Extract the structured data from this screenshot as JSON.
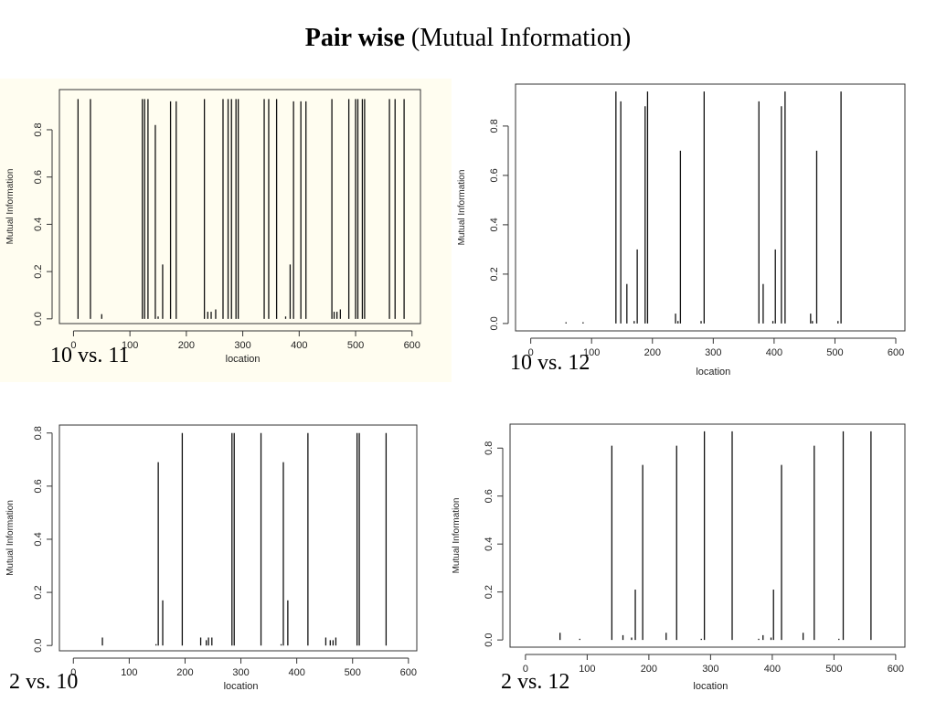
{
  "page": {
    "title_bold": "Pair wise",
    "title_rest": " (Mutual Information)"
  },
  "chart_data": [
    {
      "type": "bar",
      "label": "10 vs. 11",
      "xlabel": "location",
      "ylabel": "Mutual Information",
      "xlim": [
        -25,
        615
      ],
      "ylim": [
        -0.02,
        0.97
      ],
      "xticks": [
        0,
        100,
        200,
        300,
        400,
        500,
        600
      ],
      "yticks": [
        0.0,
        0.2,
        0.4,
        0.6,
        0.8
      ],
      "grid": false,
      "x": [
        8,
        30,
        50,
        122,
        126,
        132,
        145,
        150,
        158,
        172,
        182,
        232,
        238,
        244,
        252,
        265,
        274,
        280,
        288,
        292,
        338,
        346,
        360,
        376,
        384,
        390,
        403,
        412,
        458,
        462,
        467,
        473,
        488,
        500,
        504,
        512,
        516,
        560,
        570,
        586
      ],
      "values": [
        0.93,
        0.93,
        0.02,
        0.93,
        0.93,
        0.93,
        0.82,
        0.01,
        0.23,
        0.92,
        0.92,
        0.93,
        0.03,
        0.03,
        0.04,
        0.93,
        0.93,
        0.93,
        0.93,
        0.93,
        0.93,
        0.93,
        0.93,
        0.01,
        0.23,
        0.92,
        0.92,
        0.92,
        0.93,
        0.03,
        0.03,
        0.04,
        0.93,
        0.93,
        0.93,
        0.93,
        0.93,
        0.93,
        0.93,
        0.93
      ]
    },
    {
      "type": "bar",
      "label": "10 vs. 12",
      "xlabel": "location",
      "ylabel": "Mutual Information",
      "xlim": [
        -25,
        615
      ],
      "ylim": [
        -0.03,
        0.97
      ],
      "xticks": [
        0,
        100,
        200,
        300,
        400,
        500,
        600
      ],
      "yticks": [
        0.0,
        0.2,
        0.4,
        0.6,
        0.8
      ],
      "grid": false,
      "x": [
        58,
        86,
        140,
        148,
        158,
        170,
        175,
        188,
        192,
        238,
        242,
        246,
        280,
        285,
        375,
        382,
        398,
        402,
        412,
        418,
        460,
        463,
        470,
        505,
        510
      ],
      "values": [
        0.005,
        0.005,
        0.94,
        0.9,
        0.16,
        0.01,
        0.3,
        0.88,
        0.94,
        0.04,
        0.01,
        0.7,
        0.01,
        0.94,
        0.9,
        0.16,
        0.01,
        0.3,
        0.88,
        0.94,
        0.04,
        0.01,
        0.7,
        0.01,
        0.94
      ]
    },
    {
      "type": "bar",
      "label": "2 vs. 10",
      "xlabel": "location",
      "ylabel": "Mutual Information",
      "xlim": [
        -25,
        615
      ],
      "ylim": [
        -0.02,
        0.83
      ],
      "xticks": [
        0,
        100,
        200,
        300,
        400,
        500,
        600
      ],
      "yticks": [
        0.0,
        0.2,
        0.4,
        0.6,
        0.8
      ],
      "grid": false,
      "x": [
        52,
        148,
        152,
        160,
        195,
        228,
        238,
        242,
        248,
        284,
        288,
        336,
        372,
        376,
        384,
        420,
        452,
        460,
        465,
        470,
        508,
        512,
        560
      ],
      "values": [
        0.03,
        0.005,
        0.69,
        0.17,
        0.8,
        0.03,
        0.02,
        0.03,
        0.03,
        0.8,
        0.8,
        0.8,
        0.005,
        0.69,
        0.17,
        0.8,
        0.03,
        0.02,
        0.02,
        0.03,
        0.8,
        0.8,
        0.8
      ]
    },
    {
      "type": "bar",
      "label": "2 vs. 12",
      "xlabel": "location",
      "ylabel": "Mutual Information",
      "xlim": [
        -25,
        615
      ],
      "ylim": [
        -0.03,
        0.9
      ],
      "xticks": [
        0,
        100,
        200,
        300,
        400,
        500,
        600
      ],
      "yticks": [
        0.0,
        0.2,
        0.4,
        0.6,
        0.8
      ],
      "grid": false,
      "x": [
        56,
        88,
        140,
        158,
        172,
        178,
        190,
        228,
        245,
        285,
        290,
        335,
        378,
        385,
        398,
        402,
        415,
        450,
        468,
        508,
        515,
        560
      ],
      "values": [
        0.03,
        0.005,
        0.81,
        0.02,
        0.01,
        0.21,
        0.73,
        0.03,
        0.81,
        0.005,
        0.87,
        0.87,
        0.005,
        0.02,
        0.01,
        0.21,
        0.73,
        0.03,
        0.81,
        0.005,
        0.87,
        0.87
      ]
    }
  ]
}
